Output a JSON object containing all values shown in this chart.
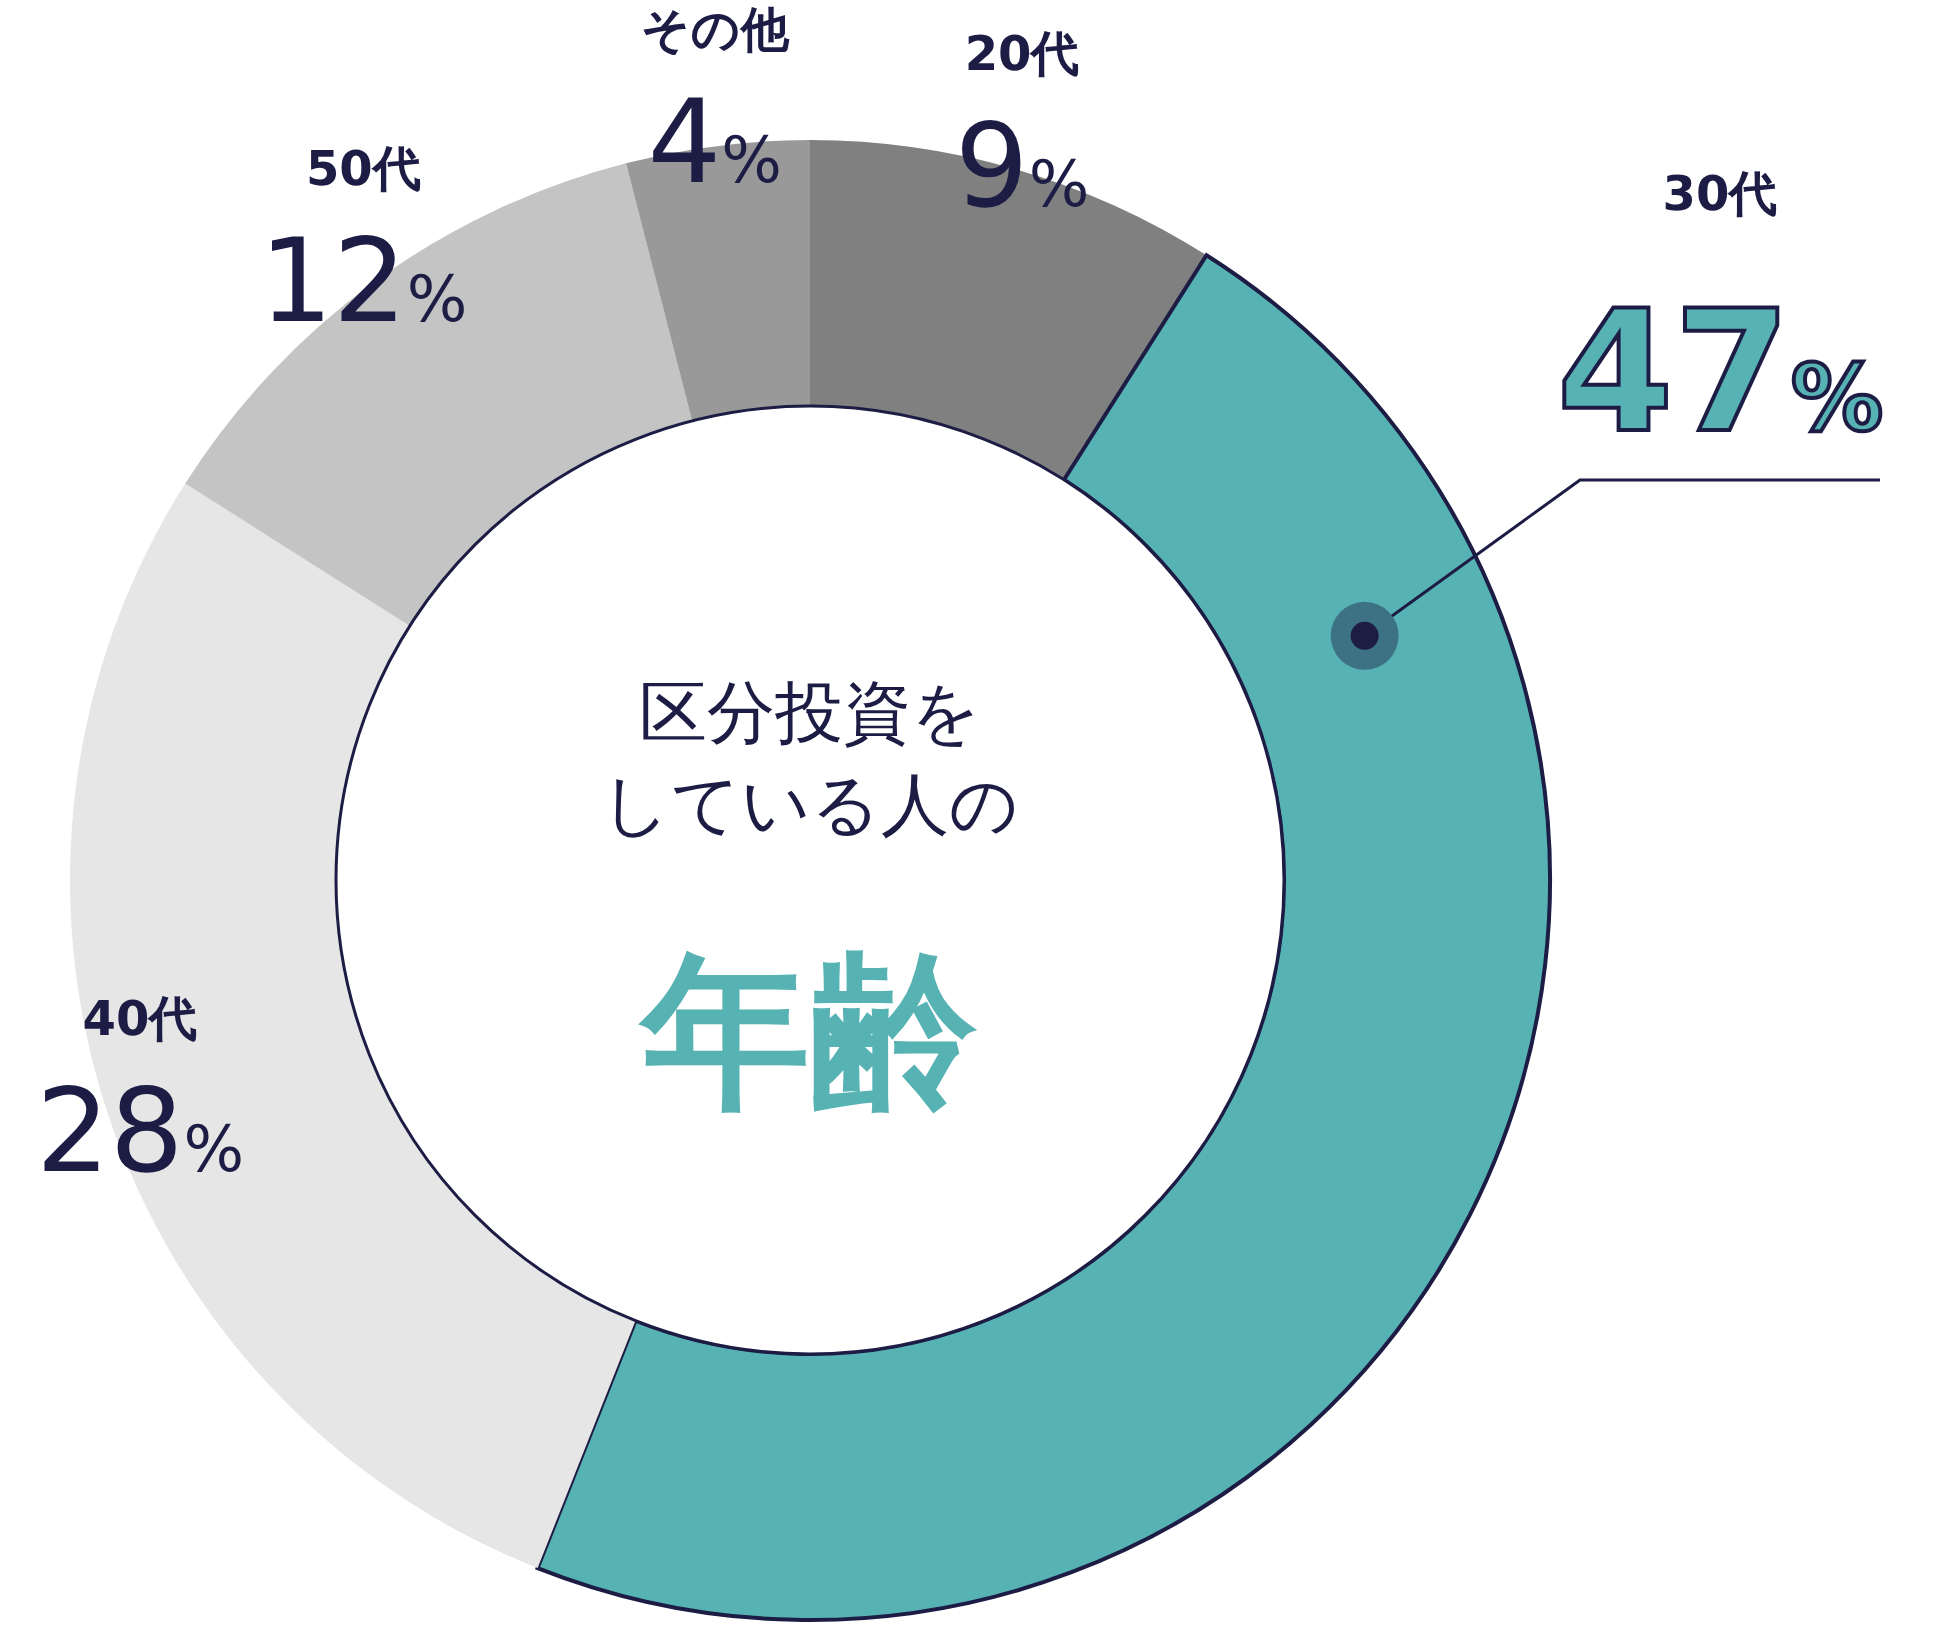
{
  "chart_data": {
    "type": "donut",
    "title": "区分投資をしている人の",
    "subtitle": "年齢",
    "categories": [
      "20代",
      "30代",
      "40代",
      "50代",
      "その他"
    ],
    "values": [
      9,
      47,
      28,
      12,
      4
    ],
    "value_labels": [
      "9%",
      "47%",
      "28%",
      "12%",
      "4%"
    ],
    "colors": [
      "#808080",
      "#57b3b3",
      "#e6e6e6",
      "#c4c4c4",
      "#999999"
    ],
    "legend": false
  }
}
